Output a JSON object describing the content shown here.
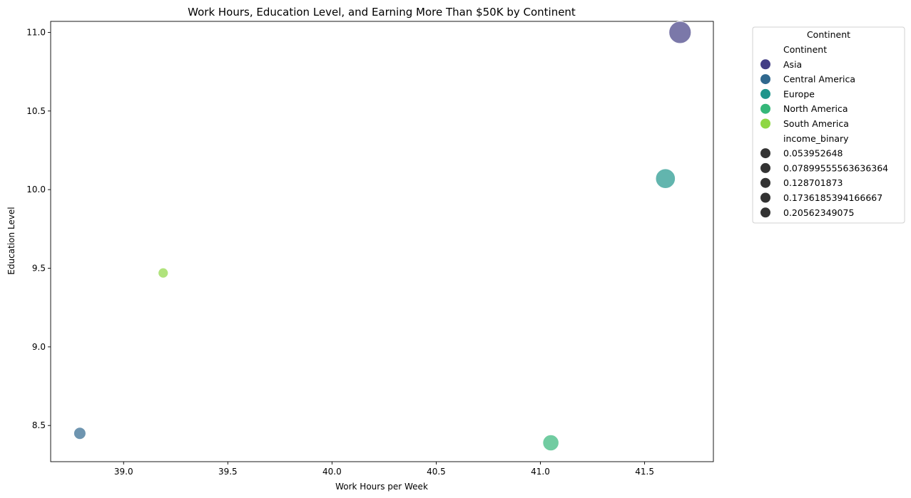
{
  "chart_data": {
    "type": "scatter",
    "title": "Work Hours, Education Level, and Earning More Than $50K by Continent",
    "xlabel": "Work Hours per Week",
    "ylabel": "Education Level",
    "xlim": [
      38.65,
      41.83
    ],
    "ylim": [
      8.27,
      11.07
    ],
    "xticks": [
      "39.0",
      "39.5",
      "40.0",
      "40.5",
      "41.0",
      "41.5"
    ],
    "xtick_values": [
      39.0,
      39.5,
      40.0,
      40.5,
      41.0,
      41.5
    ],
    "yticks": [
      "8.5",
      "9.0",
      "9.5",
      "10.0",
      "10.5",
      "11.0"
    ],
    "ytick_values": [
      8.5,
      9.0,
      9.5,
      10.0,
      10.5,
      11.0
    ],
    "grid": false,
    "legend_placement": "outside top-right",
    "legend": {
      "title": "Continent",
      "hue_title": "Continent",
      "hue_entries": [
        {
          "label": "Asia",
          "color": "#433e85"
        },
        {
          "label": "Central America",
          "color": "#30688e"
        },
        {
          "label": "Europe",
          "color": "#1f958b"
        },
        {
          "label": "North America",
          "color": "#35b779"
        },
        {
          "label": "South America",
          "color": "#8fd744"
        }
      ],
      "size_title": "income_binary",
      "size_entries": [
        "0.053952648",
        "0.07899555563636364",
        "0.128701873",
        "0.1736185394166667",
        "0.20562349075"
      ],
      "size_color": "#333333"
    },
    "points": [
      {
        "continent": "Asia",
        "x": 41.67,
        "y": 11.0,
        "income_binary": 0.20562349075,
        "color": "#433e85"
      },
      {
        "continent": "Central America",
        "x": 38.79,
        "y": 8.45,
        "income_binary": 0.07899555563636364,
        "color": "#30688e"
      },
      {
        "continent": "Europe",
        "x": 41.6,
        "y": 10.07,
        "income_binary": 0.1736185394166667,
        "color": "#1f958b"
      },
      {
        "continent": "North America",
        "x": 41.05,
        "y": 8.39,
        "income_binary": 0.128701873,
        "color": "#35b779"
      },
      {
        "continent": "South America",
        "x": 39.19,
        "y": 9.47,
        "income_binary": 0.053952648,
        "color": "#8fd744"
      }
    ],
    "point_alpha": 0.7
  }
}
